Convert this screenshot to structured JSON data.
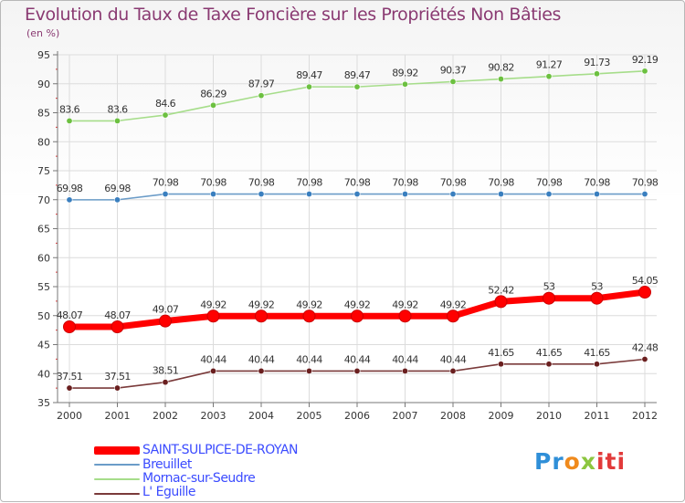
{
  "title": "Evolution du Taux de Taxe Foncière sur les Propriétés Non Bâties",
  "unit_label": "(en %)",
  "colors": {
    "title": "#8a3a72",
    "legend_text": "#3b4bff",
    "grid": "#dcdcdc",
    "axis": "#777777"
  },
  "chart_data": {
    "type": "line",
    "title": "Evolution du Taux de Taxe Foncière sur les Propriétés Non Bâties",
    "ylabel": "(en %)",
    "xlabel": "",
    "x": [
      "2000",
      "2001",
      "2002",
      "2003",
      "2004",
      "2005",
      "2006",
      "2007",
      "2008",
      "2009",
      "2010",
      "2011",
      "2012"
    ],
    "ylim": [
      35,
      95
    ],
    "yticks": [
      35,
      40,
      45,
      50,
      55,
      60,
      65,
      70,
      75,
      80,
      85,
      90,
      95
    ],
    "grid": true,
    "legend_position": "bottom-left",
    "series": [
      {
        "name": "SAINT-SULPICE-DE-ROYAN",
        "color": "#ff0000",
        "marker": "#ff0000",
        "emphasis": true,
        "values": [
          48.07,
          48.07,
          49.07,
          49.92,
          49.92,
          49.92,
          49.92,
          49.92,
          49.92,
          52.42,
          53,
          53,
          54.05
        ],
        "labels": [
          "48.07",
          "48.07",
          "49.07",
          "49.92",
          "49.92",
          "49.92",
          "49.92",
          "49.92",
          "49.92",
          "52.42",
          "53",
          "53",
          "54.05"
        ]
      },
      {
        "name": "Breuillet",
        "color": "#6b9cc8",
        "marker": "#3a7fbf",
        "emphasis": false,
        "values": [
          69.98,
          69.98,
          70.98,
          70.98,
          70.98,
          70.98,
          70.98,
          70.98,
          70.98,
          70.98,
          70.98,
          70.98,
          70.98
        ],
        "labels": [
          "69.98",
          "69.98",
          "70.98",
          "70.98",
          "70.98",
          "70.98",
          "70.98",
          "70.98",
          "70.98",
          "70.98",
          "70.98",
          "70.98",
          "70.98"
        ]
      },
      {
        "name": "Mornac-sur-Seudre",
        "color": "#a6dd8a",
        "marker": "#6cc040",
        "emphasis": false,
        "values": [
          83.6,
          83.6,
          84.6,
          86.29,
          87.97,
          89.47,
          89.47,
          89.92,
          90.37,
          90.82,
          91.27,
          91.73,
          92.19
        ],
        "labels": [
          "83.6",
          "83.6",
          "84.6",
          "86.29",
          "87.97",
          "89.47",
          "89.47",
          "89.92",
          "90.37",
          "90.82",
          "91.27",
          "91.73",
          "92.19"
        ]
      },
      {
        "name": "L' Eguille",
        "color": "#7a3a3a",
        "marker": "#6a1f1f",
        "emphasis": false,
        "values": [
          37.51,
          37.51,
          38.51,
          40.44,
          40.44,
          40.44,
          40.44,
          40.44,
          40.44,
          41.65,
          41.65,
          41.65,
          42.48
        ],
        "labels": [
          "37.51",
          "37.51",
          "38.51",
          "40.44",
          "40.44",
          "40.44",
          "40.44",
          "40.44",
          "40.44",
          "41.65",
          "41.65",
          "41.65",
          "42.48"
        ]
      }
    ]
  },
  "logo": {
    "p1": "Pr",
    "p2": "o",
    "p3": "x",
    "p4": "iti"
  }
}
